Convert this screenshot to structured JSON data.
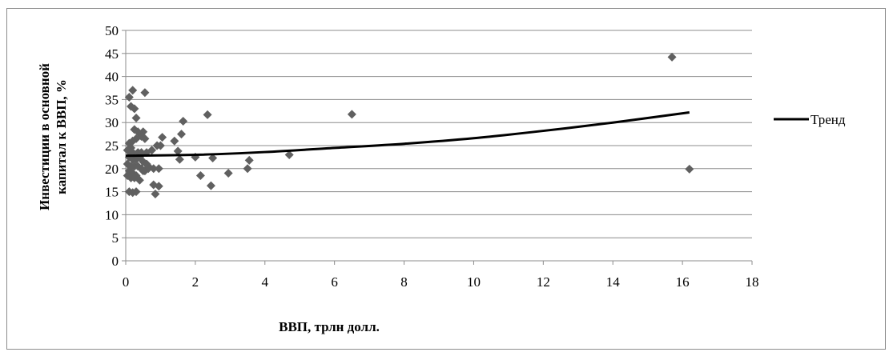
{
  "chart_data": {
    "type": "scatter",
    "title": "",
    "xlabel": "ВВП, трлн долл.",
    "ylabel_lines": [
      "Инвестиции в основной",
      "капитал к ВВП, %"
    ],
    "xlim": [
      0,
      18
    ],
    "ylim": [
      0,
      50
    ],
    "x_ticks": [
      0,
      2,
      4,
      6,
      8,
      10,
      12,
      14,
      16,
      18
    ],
    "y_ticks": [
      0,
      5,
      10,
      15,
      20,
      25,
      30,
      35,
      40,
      45,
      50
    ],
    "grid": {
      "horizontal": true,
      "vertical": false
    },
    "legend_position": "right",
    "series": [
      {
        "type": "scatter",
        "marker": "diamond",
        "color": "#606060",
        "points": [
          [
            0.1,
            35.5
          ],
          [
            0.2,
            37.0
          ],
          [
            0.15,
            33.5
          ],
          [
            0.25,
            33.0
          ],
          [
            0.55,
            36.5
          ],
          [
            0.3,
            31.0
          ],
          [
            0.25,
            28.5
          ],
          [
            0.35,
            28.0
          ],
          [
            0.5,
            28.0
          ],
          [
            0.45,
            27.0
          ],
          [
            0.55,
            26.5
          ],
          [
            0.3,
            26.5
          ],
          [
            0.2,
            26.0
          ],
          [
            0.1,
            25.5
          ],
          [
            0.15,
            24.5
          ],
          [
            0.05,
            24.0
          ],
          [
            0.2,
            23.5
          ],
          [
            0.35,
            23.5
          ],
          [
            0.45,
            23.5
          ],
          [
            0.6,
            23.5
          ],
          [
            0.75,
            24.0
          ],
          [
            0.1,
            22.5
          ],
          [
            0.2,
            22.0
          ],
          [
            0.3,
            22.0
          ],
          [
            0.4,
            22.5
          ],
          [
            0.5,
            21.5
          ],
          [
            0.6,
            21.0
          ],
          [
            0.05,
            21.0
          ],
          [
            0.15,
            20.5
          ],
          [
            0.25,
            20.5
          ],
          [
            0.35,
            20.5
          ],
          [
            0.45,
            20.0
          ],
          [
            0.55,
            19.5
          ],
          [
            0.65,
            20.0
          ],
          [
            0.1,
            19.5
          ],
          [
            0.2,
            19.0
          ],
          [
            0.3,
            18.5
          ],
          [
            0.05,
            18.5
          ],
          [
            0.15,
            18.0
          ],
          [
            0.25,
            18.0
          ],
          [
            0.4,
            17.5
          ],
          [
            0.5,
            19.5
          ],
          [
            0.65,
            20.5
          ],
          [
            0.8,
            20.0
          ],
          [
            0.95,
            20.0
          ],
          [
            1.0,
            25.0
          ],
          [
            1.05,
            26.8
          ],
          [
            0.9,
            25.0
          ],
          [
            0.1,
            15.0
          ],
          [
            0.2,
            14.8
          ],
          [
            0.3,
            15.0
          ],
          [
            0.8,
            16.5
          ],
          [
            0.85,
            14.5
          ],
          [
            0.95,
            16.2
          ],
          [
            1.4,
            26.0
          ],
          [
            1.5,
            23.8
          ],
          [
            1.55,
            22.0
          ],
          [
            1.6,
            27.5
          ],
          [
            1.65,
            30.3
          ],
          [
            2.0,
            22.5
          ],
          [
            2.15,
            18.5
          ],
          [
            2.35,
            31.7
          ],
          [
            2.45,
            16.3
          ],
          [
            2.5,
            22.3
          ],
          [
            2.95,
            19.0
          ],
          [
            3.5,
            20.0
          ],
          [
            3.55,
            21.8
          ],
          [
            4.7,
            23.0
          ],
          [
            6.5,
            31.8
          ],
          [
            15.7,
            44.2
          ],
          [
            16.2,
            19.9
          ]
        ]
      },
      {
        "type": "line",
        "name": "Тренд",
        "color": "#000000",
        "x": [
          0,
          2,
          4,
          6,
          8,
          10,
          12,
          14,
          16.2
        ],
        "y": [
          22.8,
          23.0,
          23.6,
          24.5,
          25.4,
          26.6,
          28.2,
          30.0,
          32.2
        ]
      }
    ]
  }
}
